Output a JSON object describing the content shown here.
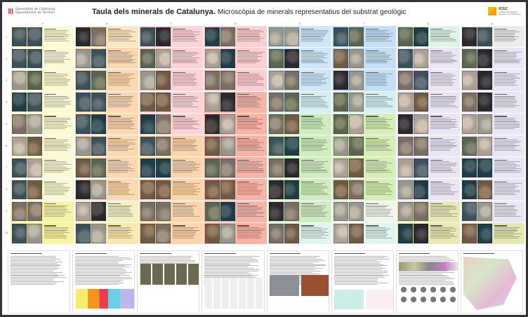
{
  "header": {
    "org_line1": "Generalitat de Catalunya",
    "org_line2": "Departament de Territori",
    "title_bold": "Taula dels minerals de Catalunya.",
    "title_rest": "Microscòpia de minerals representatius del substrat geològic",
    "icgc_acronym": "ICGC",
    "icgc_name": "Institut Cartogràfic i Geològic de Catalunya"
  },
  "columns": [
    "A",
    "B",
    "C",
    "D",
    "E",
    "F",
    "G",
    "H"
  ],
  "rows": [
    "1",
    "2",
    "3",
    "4",
    "5",
    "6",
    "7",
    "8",
    "9",
    "10"
  ],
  "cell_colors": {
    "A": [
      "#fbfad4",
      "#fbfad4",
      "#fbfad4",
      "#fbfad4",
      "#fbfad4",
      "#fbfad4",
      "#fbfad4",
      "#fbfad4",
      "#f8f4a6",
      "#f8f4a6"
    ],
    "B": [
      "#fde6c4",
      "#fdd9b2",
      "#fdd9b2",
      "#fdd9b2",
      "#fdd9b2",
      "#fdd9b2",
      "#fdd9b2",
      "#fdd9b2",
      "#f3f2c2",
      "#fbe9b4"
    ],
    "C": [
      "#fcd3d6",
      "#fcd3d6",
      "#fcd3d6",
      "#fcd3d6",
      "#fcd3d6",
      "#fdd5ac",
      "#fdd5ac",
      "#fdd5ac",
      "#fdd5ac",
      "#fdd5ac"
    ],
    "D": [
      "#fcd0d2",
      "#fcd0d2",
      "#fcd0d2",
      "#f9b4a8",
      "#f9b4a8",
      "#f9b4a8",
      "#f9b4a8",
      "#f9b4a8",
      "#f9b4a8",
      "#f9b4a8"
    ],
    "E": [
      "#cfe7f8",
      "#cfe7f8",
      "#cfe7f8",
      "#d4f0f2",
      "#d0edc0",
      "#d0edc0",
      "#d0edc0",
      "#d0edc0",
      "#d0edc0",
      "#e1f4ee"
    ],
    "F": [
      "#c5dff5",
      "#c5dff5",
      "#c5dff5",
      "#d4f0f2",
      "#d6efb8",
      "#d6efb8",
      "#d6efb8",
      "#d6efb8",
      "#f0f5ea",
      "#e1f4ee"
    ],
    "G": [
      "#def5e7",
      "#ebe6f5",
      "#ebe6f5",
      "#ebe6f5",
      "#ebe6f5",
      "#ebe6f5",
      "#ebe6f5",
      "#ebe6f5",
      "#e8e8b8",
      "#e8e8b8"
    ],
    "H": [
      "#ececec",
      "#ebe6f5",
      "#ebe6f5",
      "#ebe6f5",
      "#ebe6f5",
      "#ebe6f5",
      "#ebe6f5",
      "#ebe6f5",
      "#ebe6f5",
      "#e6e8b4"
    ]
  },
  "accent": "#fbb800"
}
